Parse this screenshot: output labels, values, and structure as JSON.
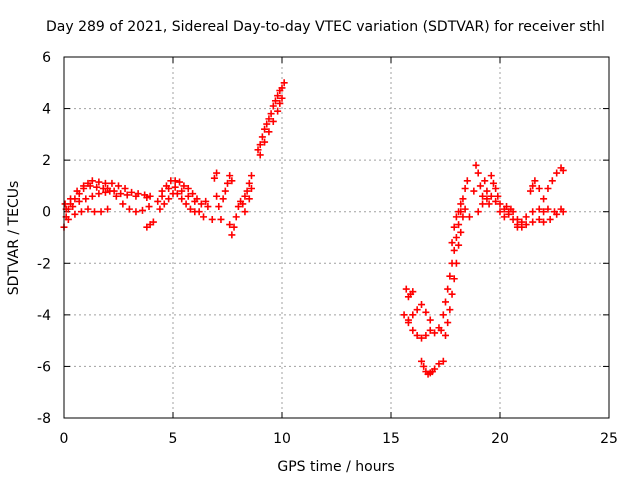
{
  "chart_data": {
    "type": "scatter",
    "title": "Day 289 of 2021, Sidereal Day-to-day VTEC variation (SDTVAR) for receiver sthl",
    "xlabel": "GPS time / hours",
    "ylabel": "SDTVAR / TECUs",
    "xlim": [
      0,
      25
    ],
    "ylim": [
      -8,
      6
    ],
    "x_ticks": [
      0,
      5,
      10,
      15,
      20,
      25
    ],
    "y_ticks": [
      -8,
      -6,
      -4,
      -2,
      0,
      2,
      4,
      6
    ],
    "x_tick_labels": [
      "0",
      "5",
      "10",
      "15",
      "20",
      "25"
    ],
    "y_tick_labels": [
      "-8",
      "-6",
      "-4",
      "-2",
      "0",
      "2",
      "4",
      "6"
    ],
    "grid": true,
    "marker": "+",
    "color": "#ff0000",
    "series": [
      {
        "points": [
          [
            0.0,
            -0.6
          ],
          [
            0.1,
            -0.2
          ],
          [
            0.2,
            0.1
          ],
          [
            0.3,
            0.3
          ],
          [
            0.5,
            0.5
          ],
          [
            0.7,
            0.7
          ],
          [
            0.9,
            0.9
          ],
          [
            1.1,
            1.1
          ],
          [
            1.3,
            1.2
          ],
          [
            1.6,
            1.15
          ],
          [
            1.9,
            1.1
          ],
          [
            2.2,
            1.1
          ],
          [
            2.5,
            1.0
          ],
          [
            2.8,
            0.9
          ],
          [
            3.1,
            0.75
          ],
          [
            3.4,
            0.7
          ],
          [
            3.7,
            0.65
          ],
          [
            3.95,
            0.6
          ],
          [
            0.05,
            0.3
          ],
          [
            0.3,
            0.5
          ],
          [
            0.6,
            0.8
          ],
          [
            0.9,
            1.0
          ],
          [
            1.2,
            1.0
          ],
          [
            1.5,
            0.95
          ],
          [
            1.8,
            0.9
          ],
          [
            2.0,
            0.9
          ],
          [
            2.3,
            0.8
          ],
          [
            2.6,
            0.7
          ],
          [
            2.9,
            0.65
          ],
          [
            3.3,
            0.6
          ],
          [
            3.8,
            0.55
          ],
          [
            0.1,
            0.1
          ],
          [
            0.4,
            0.2
          ],
          [
            0.7,
            0.4
          ],
          [
            1.0,
            0.5
          ],
          [
            1.3,
            0.6
          ],
          [
            1.6,
            0.7
          ],
          [
            1.9,
            0.75
          ],
          [
            2.1,
            0.8
          ],
          [
            2.4,
            0.6
          ],
          [
            2.7,
            0.3
          ],
          [
            3.0,
            0.1
          ],
          [
            3.3,
            0.0
          ],
          [
            3.6,
            0.05
          ],
          [
            3.9,
            0.2
          ],
          [
            0.2,
            -0.3
          ],
          [
            0.5,
            -0.1
          ],
          [
            0.8,
            0.0
          ],
          [
            1.1,
            0.1
          ],
          [
            1.4,
            0.0
          ],
          [
            1.7,
            0.0
          ],
          [
            2.0,
            0.1
          ],
          [
            3.8,
            -0.6
          ],
          [
            3.95,
            -0.5
          ],
          [
            4.1,
            -0.4
          ],
          [
            4.3,
            0.4
          ],
          [
            4.5,
            0.8
          ],
          [
            4.7,
            1.0
          ],
          [
            4.9,
            1.2
          ],
          [
            5.1,
            1.2
          ],
          [
            5.3,
            1.15
          ],
          [
            5.5,
            1.0
          ],
          [
            5.7,
            0.9
          ],
          [
            5.9,
            0.7
          ],
          [
            6.1,
            0.5
          ],
          [
            4.4,
            0.1
          ],
          [
            4.6,
            0.3
          ],
          [
            4.8,
            0.5
          ],
          [
            5.0,
            0.7
          ],
          [
            5.2,
            0.7
          ],
          [
            5.4,
            0.5
          ],
          [
            5.6,
            0.3
          ],
          [
            5.8,
            0.1
          ],
          [
            6.0,
            0.0
          ],
          [
            4.5,
            0.6
          ],
          [
            4.8,
            0.9
          ],
          [
            5.1,
            0.95
          ],
          [
            5.4,
            0.8
          ],
          [
            5.7,
            0.6
          ],
          [
            6.0,
            0.4
          ],
          [
            6.3,
            0.3
          ],
          [
            6.2,
            0.0
          ],
          [
            6.4,
            -0.2
          ],
          [
            6.5,
            0.4
          ],
          [
            6.6,
            0.2
          ],
          [
            6.8,
            -0.3
          ],
          [
            6.9,
            1.3
          ],
          [
            7.0,
            1.5
          ],
          [
            7.0,
            0.6
          ],
          [
            7.1,
            0.2
          ],
          [
            7.2,
            -0.3
          ],
          [
            7.3,
            0.5
          ],
          [
            7.4,
            0.8
          ],
          [
            7.5,
            1.1
          ],
          [
            7.6,
            1.4
          ],
          [
            7.7,
            1.2
          ],
          [
            7.6,
            -0.5
          ],
          [
            7.7,
            -0.9
          ],
          [
            7.8,
            -0.6
          ],
          [
            7.9,
            -0.2
          ],
          [
            8.0,
            0.2
          ],
          [
            8.1,
            0.4
          ],
          [
            8.2,
            0.3
          ],
          [
            8.3,
            0.6
          ],
          [
            8.4,
            0.8
          ],
          [
            8.5,
            1.1
          ],
          [
            8.6,
            1.4
          ],
          [
            8.6,
            0.9
          ],
          [
            8.5,
            0.5
          ],
          [
            8.3,
            0.0
          ],
          [
            8.9,
            2.4
          ],
          [
            9.0,
            2.6
          ],
          [
            9.1,
            2.9
          ],
          [
            9.2,
            3.2
          ],
          [
            9.3,
            3.4
          ],
          [
            9.4,
            3.6
          ],
          [
            9.5,
            3.8
          ],
          [
            9.6,
            4.1
          ],
          [
            9.7,
            4.3
          ],
          [
            9.8,
            4.5
          ],
          [
            9.9,
            4.7
          ],
          [
            10.0,
            4.8
          ],
          [
            10.1,
            5.0
          ],
          [
            9.0,
            2.2
          ],
          [
            9.2,
            2.7
          ],
          [
            9.4,
            3.1
          ],
          [
            9.6,
            3.5
          ],
          [
            9.8,
            3.9
          ],
          [
            9.9,
            4.2
          ],
          [
            10.0,
            4.4
          ],
          [
            15.7,
            -3.0
          ],
          [
            15.8,
            -3.3
          ],
          [
            15.9,
            -3.2
          ],
          [
            16.0,
            -3.1
          ],
          [
            15.6,
            -4.0
          ],
          [
            15.8,
            -4.3
          ],
          [
            16.0,
            -4.6
          ],
          [
            16.2,
            -4.8
          ],
          [
            16.4,
            -4.9
          ],
          [
            16.6,
            -4.8
          ],
          [
            16.8,
            -4.6
          ],
          [
            17.0,
            -4.7
          ],
          [
            17.2,
            -4.5
          ],
          [
            15.8,
            -4.2
          ],
          [
            16.0,
            -4.0
          ],
          [
            16.2,
            -3.8
          ],
          [
            16.4,
            -3.6
          ],
          [
            16.6,
            -3.9
          ],
          [
            16.8,
            -4.2
          ],
          [
            16.4,
            -5.8
          ],
          [
            16.5,
            -6.0
          ],
          [
            16.6,
            -6.2
          ],
          [
            16.7,
            -6.3
          ],
          [
            16.8,
            -6.25
          ],
          [
            16.9,
            -6.2
          ],
          [
            17.0,
            -6.1
          ],
          [
            17.2,
            -5.9
          ],
          [
            17.4,
            -5.8
          ],
          [
            17.3,
            -4.6
          ],
          [
            17.4,
            -4.0
          ],
          [
            17.5,
            -3.5
          ],
          [
            17.6,
            -3.0
          ],
          [
            17.7,
            -2.5
          ],
          [
            17.8,
            -2.0
          ],
          [
            17.9,
            -1.5
          ],
          [
            18.0,
            -1.0
          ],
          [
            18.1,
            -0.5
          ],
          [
            18.2,
            0.0
          ],
          [
            18.3,
            0.5
          ],
          [
            18.4,
            0.9
          ],
          [
            18.5,
            1.2
          ],
          [
            17.5,
            -4.8
          ],
          [
            17.6,
            -4.3
          ],
          [
            17.7,
            -3.8
          ],
          [
            17.8,
            -3.2
          ],
          [
            17.9,
            -2.6
          ],
          [
            18.0,
            -2.0
          ],
          [
            18.1,
            -1.3
          ],
          [
            18.2,
            -0.8
          ],
          [
            18.3,
            -0.2
          ],
          [
            17.8,
            -1.2
          ],
          [
            17.9,
            -0.6
          ],
          [
            18.0,
            -0.2
          ],
          [
            18.1,
            0.0
          ],
          [
            18.2,
            0.3
          ],
          [
            18.4,
            0.1
          ],
          [
            18.6,
            -0.2
          ],
          [
            18.8,
            0.8
          ],
          [
            18.9,
            1.8
          ],
          [
            19.0,
            1.5
          ],
          [
            19.1,
            1.0
          ],
          [
            19.2,
            0.6
          ],
          [
            19.3,
            1.2
          ],
          [
            19.4,
            0.8
          ],
          [
            19.5,
            0.3
          ],
          [
            19.6,
            1.4
          ],
          [
            19.7,
            1.1
          ],
          [
            19.8,
            0.9
          ],
          [
            19.9,
            0.6
          ],
          [
            20.0,
            0.3
          ],
          [
            20.2,
            0.1
          ],
          [
            20.4,
            0.0
          ],
          [
            20.6,
            -0.3
          ],
          [
            20.8,
            -0.6
          ],
          [
            19.0,
            0.0
          ],
          [
            19.2,
            0.3
          ],
          [
            19.4,
            0.5
          ],
          [
            19.6,
            0.6
          ],
          [
            19.8,
            0.4
          ],
          [
            20.0,
            0.0
          ],
          [
            20.2,
            -0.2
          ],
          [
            20.4,
            -0.1
          ],
          [
            20.6,
            0.0
          ],
          [
            20.3,
            0.2
          ],
          [
            20.5,
            0.1
          ],
          [
            20.8,
            -0.3
          ],
          [
            21.0,
            -0.4
          ],
          [
            21.2,
            -0.2
          ],
          [
            21.5,
            0.0
          ],
          [
            21.8,
            0.1
          ],
          [
            22.0,
            0.0
          ],
          [
            22.2,
            0.1
          ],
          [
            22.5,
            0.0
          ],
          [
            22.8,
            0.1
          ],
          [
            20.8,
            -0.5
          ],
          [
            21.0,
            -0.6
          ],
          [
            21.2,
            -0.5
          ],
          [
            21.5,
            -0.4
          ],
          [
            21.8,
            -0.3
          ],
          [
            22.0,
            -0.4
          ],
          [
            22.3,
            -0.3
          ],
          [
            22.6,
            -0.1
          ],
          [
            22.9,
            0.0
          ],
          [
            21.4,
            0.8
          ],
          [
            21.5,
            1.0
          ],
          [
            21.6,
            1.2
          ],
          [
            21.8,
            0.9
          ],
          [
            22.0,
            0.5
          ],
          [
            22.2,
            0.9
          ],
          [
            22.4,
            1.2
          ],
          [
            22.6,
            1.5
          ],
          [
            22.8,
            1.7
          ],
          [
            22.9,
            1.6
          ]
        ]
      }
    ]
  }
}
